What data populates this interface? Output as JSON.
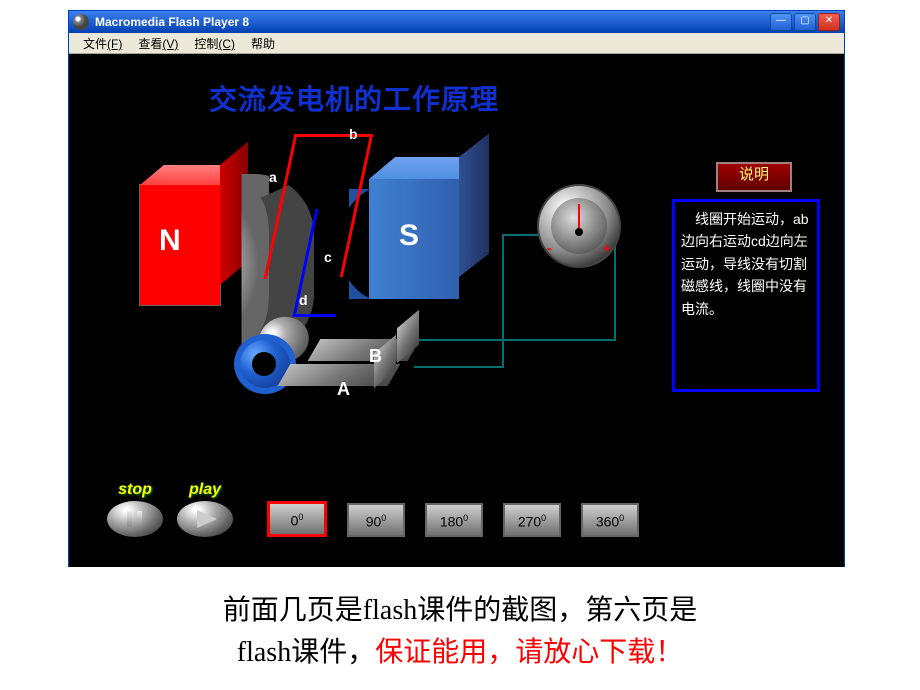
{
  "window": {
    "title": "Macromedia Flash Player 8"
  },
  "menubar": {
    "file": "文件",
    "file_key": "(F)",
    "view": "查看",
    "view_key": "(V)",
    "control": "控制",
    "control_key": "(C)",
    "help": "帮助"
  },
  "content": {
    "title": "交流发电机的工作原理",
    "magnet_n": "N",
    "magnet_s": "S",
    "labels": {
      "a": "a",
      "b": "b",
      "c": "c",
      "d": "d",
      "big_a": "A",
      "big_b": "B"
    },
    "ammeter": {
      "minus": "-",
      "plus": "+"
    },
    "explain_button": "说明",
    "explain_text": "　线圈开始运动，ab边向右运动cd边向左运动，导线没有切割磁感线，线圈中没有电流。"
  },
  "controls": {
    "stop": "stop",
    "play": "play",
    "angles": [
      {
        "label": "0",
        "sup": "0",
        "active": true
      },
      {
        "label": "90",
        "sup": "0",
        "active": false
      },
      {
        "label": "180",
        "sup": "0",
        "active": false
      },
      {
        "label": "270",
        "sup": "0",
        "active": false
      },
      {
        "label": "360",
        "sup": "0",
        "active": false
      }
    ]
  },
  "caption": {
    "line1": "前面几页是flash课件的截图，第六页是",
    "line2a": "flash课件，",
    "line2b": "保证能用，请放心下载！"
  },
  "colors": {
    "window_bg": "#000000",
    "title_blue": "#1030d0",
    "magnet_n": "#ff0000",
    "magnet_s": "#3060b0",
    "wire_red": "#ff0000",
    "wire_blue": "#0000ff",
    "wire_teal": "#007070",
    "box_border": "#0000ff",
    "yellow_text": "#ffff00",
    "active_border": "#ff0000",
    "explain_btn_text": "#ffff80",
    "caption_red": "#ff0000"
  }
}
